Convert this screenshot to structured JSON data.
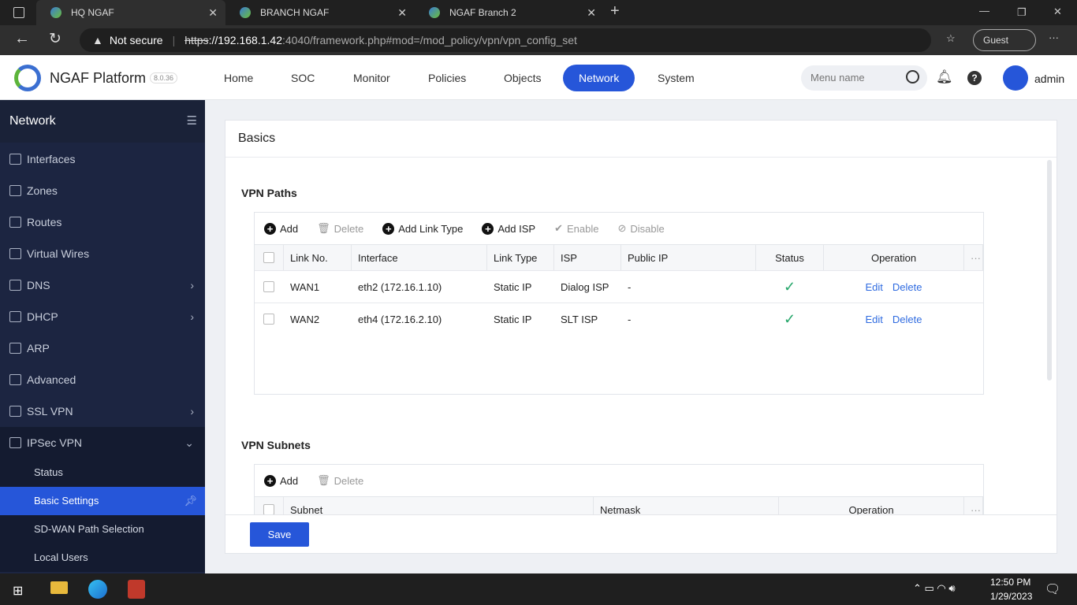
{
  "browser": {
    "tabs": [
      {
        "label": "HQ NGAF"
      },
      {
        "label": "BRANCH NGAF"
      },
      {
        "label": "NGAF Branch 2"
      }
    ],
    "security": "Not secure",
    "url_scheme": "https",
    "url_host": "://192.168.1.42",
    "url_rest": ":4040/framework.php#mod=/mod_policy/vpn/vpn_config_set",
    "profile": "Guest"
  },
  "app": {
    "name": "NGAF Platform",
    "version": "8.0.36",
    "nav": [
      "Home",
      "SOC",
      "Monitor",
      "Policies",
      "Objects",
      "Network",
      "System"
    ],
    "active_nav": "Network",
    "search_placeholder": "Menu name",
    "user": "admin",
    "accent": "#2656d9"
  },
  "sidebar": {
    "title": "Network",
    "items": [
      {
        "label": "Interfaces"
      },
      {
        "label": "Zones"
      },
      {
        "label": "Routes"
      },
      {
        "label": "Virtual Wires"
      },
      {
        "label": "DNS"
      },
      {
        "label": "DHCP"
      },
      {
        "label": "ARP"
      },
      {
        "label": "Advanced"
      },
      {
        "label": "SSL VPN"
      },
      {
        "label": "IPSec VPN"
      }
    ],
    "sub": [
      "Status",
      "Basic Settings",
      "SD-WAN Path Selection",
      "Local Users"
    ],
    "active_sub": "Basic Settings"
  },
  "main": {
    "title": "Basics",
    "paths": {
      "title": "VPN Paths",
      "toolbar": [
        "Add",
        "Delete",
        "Add Link Type",
        "Add ISP",
        "Enable",
        "Disable"
      ],
      "headers": [
        "Link No.",
        "Interface",
        "Link Type",
        "ISP",
        "Public IP",
        "Status",
        "Operation"
      ],
      "rows": [
        {
          "link": "WAN1",
          "iface": "eth2 (172.16.1.10)",
          "type": "Static IP",
          "isp": "Dialog ISP",
          "pub": "-",
          "status": "enabled"
        },
        {
          "link": "WAN2",
          "iface": "eth4 (172.16.2.10)",
          "type": "Static IP",
          "isp": "SLT ISP",
          "pub": "-",
          "status": "enabled"
        }
      ],
      "edit": "Edit",
      "delete": "Delete"
    },
    "subnets": {
      "title": "VPN Subnets",
      "toolbar": [
        "Add",
        "Delete"
      ],
      "headers": [
        "Subnet",
        "Netmask",
        "Operation"
      ]
    },
    "save": "Save"
  },
  "taskbar": {
    "time": "12:50 PM",
    "date": "1/29/2023"
  }
}
